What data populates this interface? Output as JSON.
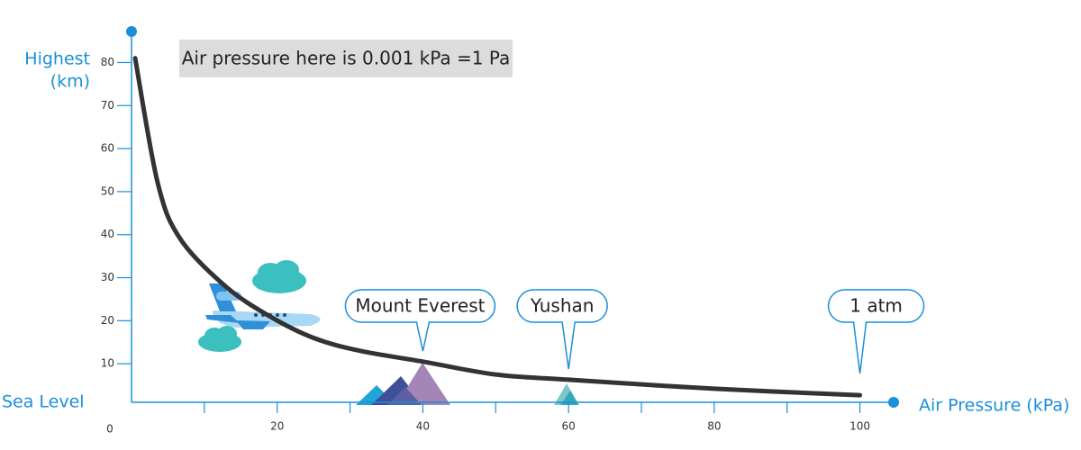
{
  "chart_data": {
    "type": "line",
    "y_label_lines": [
      "Highest",
      "(km)"
    ],
    "origin_label": "Sea Level",
    "x_label": "Air Pressure (kPa)",
    "zero_label": "0",
    "note": "Air pressure here is 0.001 kPa =1 Pa",
    "xlim": [
      0,
      105
    ],
    "ylim": [
      0,
      87
    ],
    "xticks": [
      20,
      40,
      60,
      80,
      100
    ],
    "xminorticks": [
      10,
      30,
      50,
      70,
      90
    ],
    "yticks": [
      10,
      20,
      30,
      40,
      50,
      60,
      70,
      80
    ],
    "x": [
      0.5,
      3.6,
      6.7,
      12.9,
      19,
      25,
      31.4,
      40,
      50,
      60,
      80,
      100
    ],
    "series": [
      {
        "color": "#333333",
        "values": [
          81,
          52,
          39,
          28,
          21,
          16,
          13,
          10.5,
          7.5,
          6.3,
          4.2,
          2.7
        ]
      }
    ],
    "annotations": [
      {
        "text": "Mount Everest",
        "x": 40
      },
      {
        "text": "Yushan",
        "x": 60
      },
      {
        "text": "1 atm",
        "x": 100
      }
    ]
  }
}
